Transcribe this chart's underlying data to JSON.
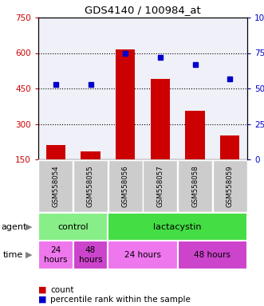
{
  "title": "GDS4140 / 100984_at",
  "samples": [
    "GSM558054",
    "GSM558055",
    "GSM558056",
    "GSM558057",
    "GSM558058",
    "GSM558059"
  ],
  "counts": [
    210,
    185,
    615,
    490,
    355,
    250
  ],
  "percentile_ranks": [
    53,
    53,
    75,
    72,
    67,
    57
  ],
  "ylim_left": [
    150,
    750
  ],
  "ylim_right": [
    0,
    100
  ],
  "yticks_left": [
    150,
    300,
    450,
    600,
    750
  ],
  "yticks_right": [
    0,
    25,
    50,
    75,
    100
  ],
  "ytick_labels_left": [
    "150",
    "300",
    "450",
    "600",
    "750"
  ],
  "ytick_labels_right": [
    "0",
    "25",
    "50",
    "75",
    "100%"
  ],
  "bar_color": "#cc0000",
  "dot_color": "#0000cc",
  "agent_groups": [
    {
      "label": "control",
      "start": 0,
      "end": 2,
      "color": "#88ee88"
    },
    {
      "label": "lactacystin",
      "start": 2,
      "end": 6,
      "color": "#44dd44"
    }
  ],
  "time_groups": [
    {
      "label": "24\nhours",
      "start": 0,
      "end": 1,
      "color": "#ee77ee"
    },
    {
      "label": "48\nhours",
      "start": 1,
      "end": 2,
      "color": "#cc44cc"
    },
    {
      "label": "24 hours",
      "start": 2,
      "end": 4,
      "color": "#ee77ee"
    },
    {
      "label": "48 hours",
      "start": 4,
      "end": 6,
      "color": "#cc44cc"
    }
  ],
  "legend_count_color": "#cc0000",
  "legend_dot_color": "#0000cc",
  "background_color": "#ffffff",
  "left_axis_color": "#cc0000",
  "right_axis_color": "#0000cc",
  "sample_label_bg": "#cccccc",
  "plot_bg": "#f0f0f8"
}
